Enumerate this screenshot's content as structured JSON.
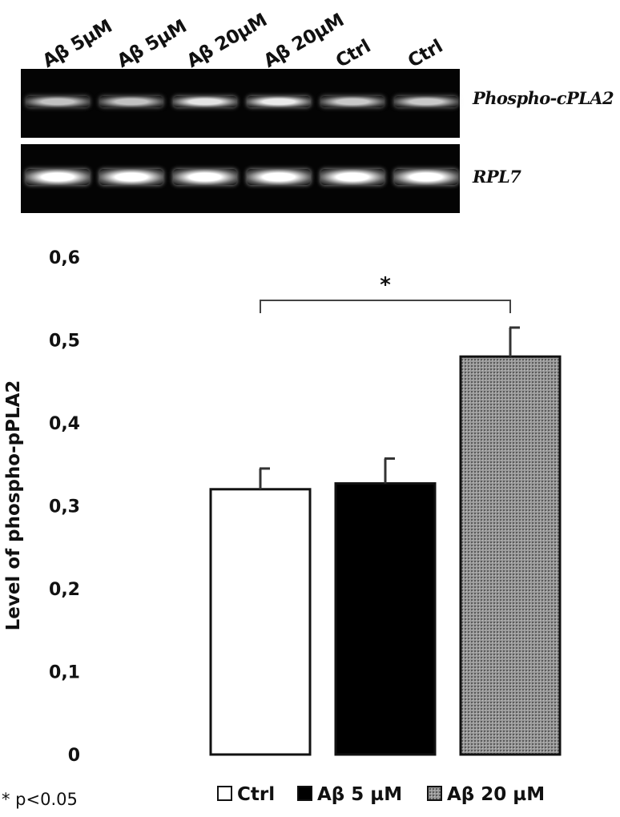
{
  "blot": {
    "lane_labels": [
      "Aβ 5µM",
      "Aβ 5µM",
      "Aβ 20µM",
      "Aβ 20µM",
      "Ctrl",
      "Ctrl"
    ],
    "rows": [
      {
        "label": "Phospho-cPLA2",
        "band_intensity": [
          0.55,
          0.55,
          0.8,
          0.85,
          0.6,
          0.6
        ]
      },
      {
        "label": "RPL7",
        "band_intensity": [
          1.0,
          1.0,
          1.0,
          1.0,
          1.0,
          1.0
        ]
      }
    ]
  },
  "chart_data": {
    "type": "bar",
    "categories": [
      "Ctrl",
      "Aβ 5 µM",
      "Aβ 20 µM"
    ],
    "values": [
      0.32,
      0.327,
      0.48
    ],
    "errors": [
      0.025,
      0.03,
      0.035
    ],
    "ylabel": "Level of phospho-pPLA2",
    "ylim": [
      0,
      0.6
    ],
    "yticks": [
      "0",
      "0,1",
      "0,2",
      "0,3",
      "0,4",
      "0,5",
      "0,6"
    ],
    "ytick_values": [
      0,
      0.1,
      0.2,
      0.3,
      0.4,
      0.5,
      0.6
    ],
    "bar_fills": [
      "white",
      "black",
      "stippled gray"
    ],
    "legend": {
      "placement": "bottom",
      "entries": [
        "Ctrl",
        "Aβ 5 µM",
        "Aβ 20 µM"
      ]
    },
    "significance": {
      "between": [
        "Ctrl",
        "Aβ 20 µM"
      ],
      "marker": "*"
    },
    "note": "* p<0.05",
    "grid": false
  },
  "colors": {
    "ctrl_fill": "#ffffff",
    "ab5_fill": "#000000",
    "ab20_fill": "#9a9a9a",
    "ab20_dots": "#5a5a5a",
    "stroke": "#111111"
  }
}
